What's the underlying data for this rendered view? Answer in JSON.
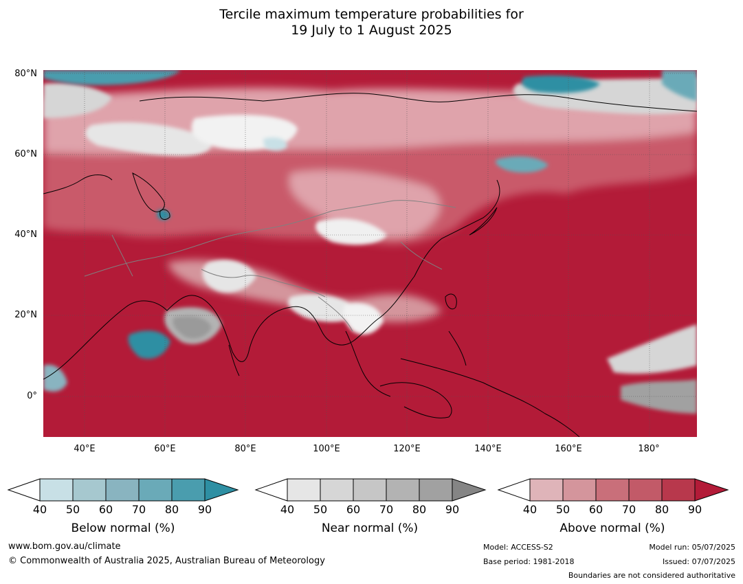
{
  "title": {
    "line1": "Tercile maximum temperature probabilities for",
    "line2": "19 July to 1 August 2025"
  },
  "map": {
    "lat_ticks": [
      "80°N",
      "60°N",
      "40°N",
      "20°N",
      "0°"
    ],
    "lon_ticks": [
      "40°E",
      "60°E",
      "80°E",
      "100°E",
      "120°E",
      "140°E",
      "160°E",
      "180°"
    ],
    "colors": {
      "dominant_above": "#b31b38",
      "ocean_above": "#b6203d",
      "land_above_mid": "#c95a6a",
      "land_above_light": "#dfa3ab",
      "near_light": "#e6e6e6",
      "near_mid": "#c6c6c6",
      "near_dark": "#9a9a9a",
      "below_mid": "#6aaab8",
      "below_dark": "#2e8fa3",
      "coastline": "#000000",
      "borders": "#808080"
    }
  },
  "colorbars": [
    {
      "label": "Below normal (%)",
      "ticks": [
        "40",
        "50",
        "60",
        "70",
        "80",
        "90"
      ],
      "colors": [
        "#ffffff",
        "#c8e0e6",
        "#a6c8cf",
        "#89b4c0",
        "#6aaab8",
        "#4a9dae",
        "#2e8fa3"
      ]
    },
    {
      "label": "Near normal (%)",
      "ticks": [
        "40",
        "50",
        "60",
        "70",
        "80",
        "90"
      ],
      "colors": [
        "#ffffff",
        "#e6e6e6",
        "#d6d6d6",
        "#c6c6c6",
        "#b3b3b3",
        "#a1a1a1",
        "#858585"
      ]
    },
    {
      "label": "Above normal (%)",
      "ticks": [
        "40",
        "50",
        "60",
        "70",
        "80",
        "90"
      ],
      "colors": [
        "#ffffff",
        "#dfb4b9",
        "#d4959c",
        "#c96f7a",
        "#c25a68",
        "#b8384c",
        "#b31b38"
      ]
    }
  ],
  "footer": {
    "website": "www.bom.gov.au/climate",
    "copyright": "© Commonwealth of Australia 2025, Australian Bureau of Meteorology",
    "model": "Model: ACCESS-S2",
    "base_period": "Base period: 1981-2018",
    "model_run": "Model run: 05/07/2025",
    "issued": "Issued: 07/07/2025",
    "disclaimer": "Boundaries are not considered authoritative"
  }
}
